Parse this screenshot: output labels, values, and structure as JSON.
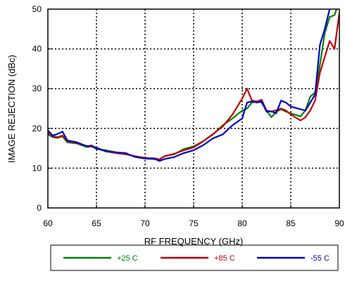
{
  "chart_data": {
    "type": "line",
    "xlabel": "RF FREQUENCY (GHz)",
    "ylabel": "IMAGE REJECTION (dBc)",
    "xlim": [
      60,
      90
    ],
    "ylim": [
      0,
      50
    ],
    "xticks": [
      "60",
      "65",
      "70",
      "75",
      "80",
      "85",
      "90"
    ],
    "yticks": [
      "0",
      "10",
      "20",
      "30",
      "40",
      "50"
    ],
    "grid": true,
    "legend_position": "bottom",
    "series": [
      {
        "name": "+25 C",
        "color": "#008000",
        "x": [
          60,
          60.5,
          61,
          61.5,
          62,
          63,
          64,
          64.5,
          65,
          66,
          67,
          68,
          69,
          70,
          71,
          71.5,
          72,
          73,
          74,
          75,
          76,
          77,
          78,
          79,
          80,
          80.5,
          81,
          81.5,
          82,
          82.5,
          83,
          83.5,
          84,
          84.5,
          85,
          86,
          86.5,
          87,
          87.5,
          88,
          88.5,
          89,
          89.5,
          90
        ],
        "y": [
          18.5,
          17.8,
          17.6,
          18,
          16.5,
          16.2,
          15.3,
          15.5,
          14.8,
          14.5,
          14,
          13.5,
          13,
          12.6,
          12.5,
          12.2,
          13,
          13.5,
          14.8,
          15.5,
          16.8,
          18.5,
          20.8,
          22.5,
          24.5,
          25,
          26.5,
          26.8,
          26.5,
          24.5,
          22.8,
          24.2,
          24.8,
          24.2,
          23.8,
          23,
          24.5,
          28,
          29,
          36,
          44,
          48,
          48.5,
          52
        ]
      },
      {
        "name": "+85 C",
        "color": "#c00000",
        "x": [
          60,
          60.5,
          61,
          61.5,
          62,
          63,
          64,
          64.5,
          65,
          66,
          67,
          68,
          69,
          70,
          71,
          71.5,
          72,
          73,
          74,
          75,
          76,
          77,
          78,
          79,
          80,
          80.5,
          81,
          81.5,
          82,
          82.5,
          83,
          84,
          84.5,
          85,
          86,
          86.5,
          87,
          87.5,
          88,
          88.5,
          89,
          89.5,
          90
        ],
        "y": [
          19,
          18,
          17.8,
          18.2,
          16.8,
          16.3,
          15.6,
          15.4,
          15.2,
          14.2,
          13.8,
          13.5,
          13,
          12.6,
          12.4,
          12.2,
          13,
          13.6,
          14.5,
          15.2,
          16.8,
          18.6,
          20.5,
          23.5,
          27.5,
          30,
          27,
          26.8,
          27.2,
          24.5,
          24.2,
          25,
          24.5,
          23.5,
          22,
          22.8,
          24.5,
          27,
          34,
          38,
          42,
          40,
          49
        ]
      },
      {
        "name": "-55 C",
        "color": "#0000cc",
        "x": [
          60,
          60.5,
          61,
          61.5,
          62,
          63,
          64,
          64.5,
          65,
          66,
          67,
          68,
          69,
          70,
          71,
          71.5,
          72,
          73,
          74,
          75,
          76,
          77,
          78,
          79,
          80,
          80.5,
          81,
          81.5,
          82,
          82.5,
          83,
          83.5,
          84,
          84.5,
          85,
          86,
          86.5,
          87,
          87.5,
          88,
          88.5,
          89,
          89.5,
          90
        ],
        "y": [
          19.5,
          18.2,
          18.6,
          19.2,
          17,
          16.5,
          15.5,
          15.7,
          15,
          14.2,
          14,
          13.8,
          12.8,
          12.4,
          12.3,
          11.8,
          12.3,
          12.8,
          13.8,
          14.5,
          15.8,
          17.5,
          18.5,
          20.8,
          22.5,
          26.5,
          26.8,
          26.5,
          26.8,
          24.2,
          24.3,
          23.8,
          27,
          26.5,
          25.5,
          24.8,
          24.5,
          26.5,
          28.5,
          41,
          45,
          50,
          52,
          52
        ]
      }
    ]
  }
}
